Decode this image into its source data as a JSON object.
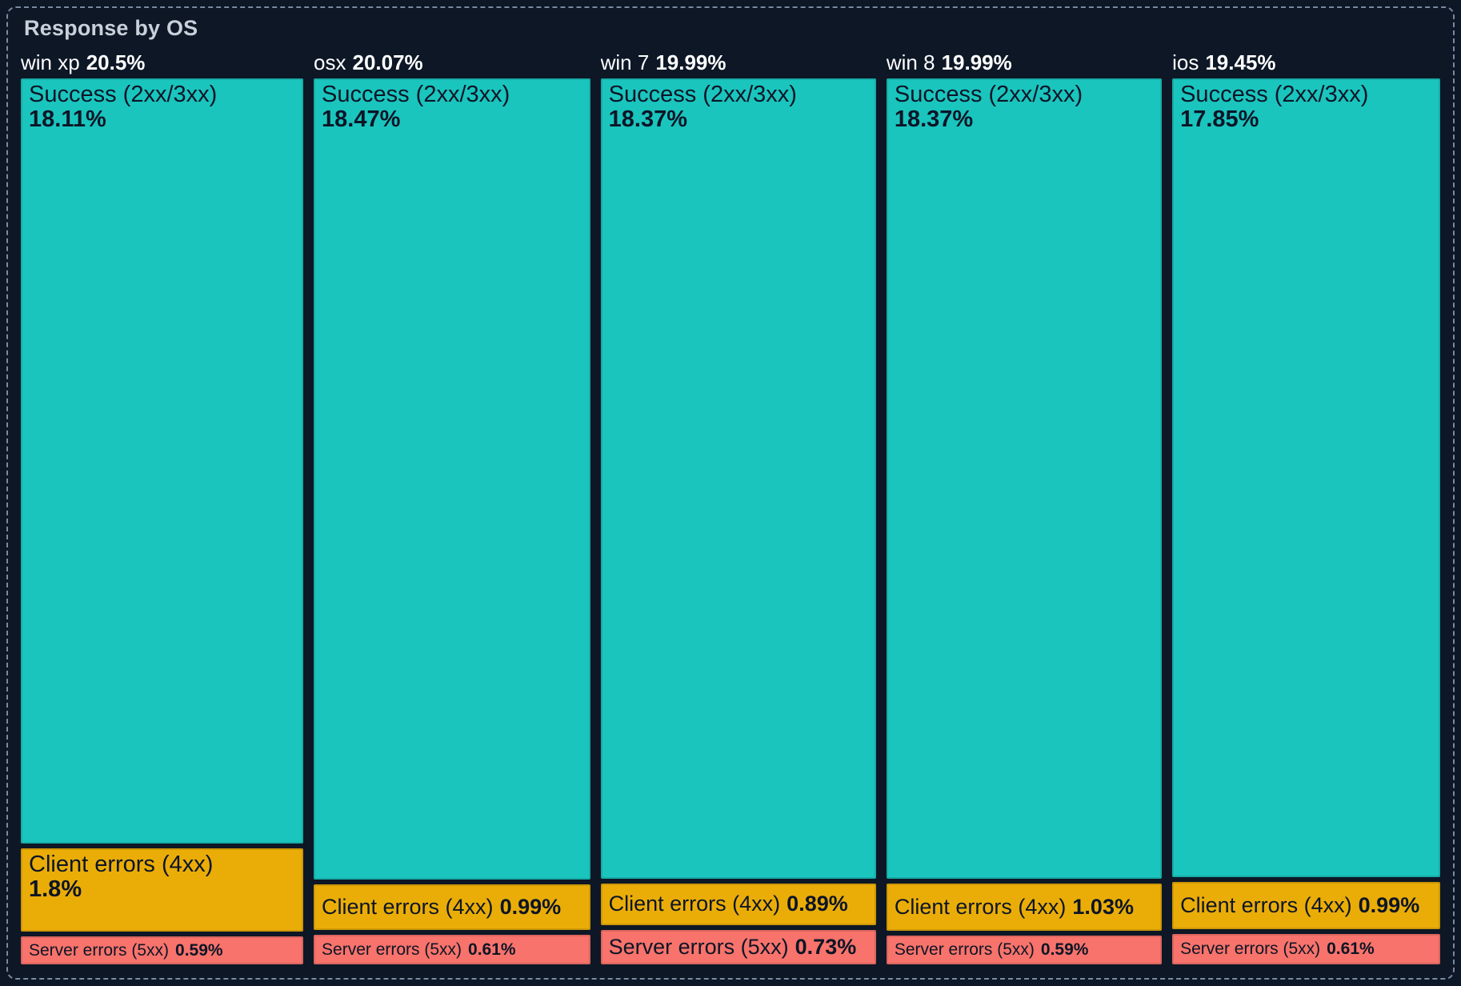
{
  "panel": {
    "title": "Response by OS"
  },
  "colors": {
    "background": "#0d1726",
    "border": "#7b89a0",
    "title_text": "#c9d0da",
    "header_text": "#ffffff",
    "segment_text": "#0d1526",
    "success": "#1ac5be",
    "client_errors": "#eaad08",
    "server_errors": "#f7736b"
  },
  "chart_data": {
    "type": "treemap",
    "title": "Response by OS",
    "legend_position": "none",
    "groups": [
      {
        "name": "win xp",
        "value": "20.5%",
        "segments": [
          {
            "label": "Success (2xx/3xx)",
            "value": "18.11%",
            "category": "success"
          },
          {
            "label": "Client errors (4xx)",
            "value": "1.8%",
            "category": "client_errors"
          },
          {
            "label": "Server errors (5xx)",
            "value": "0.59%",
            "category": "server_errors"
          }
        ]
      },
      {
        "name": "osx",
        "value": "20.07%",
        "segments": [
          {
            "label": "Success (2xx/3xx)",
            "value": "18.47%",
            "category": "success"
          },
          {
            "label": "Client errors (4xx)",
            "value": "0.99%",
            "category": "client_errors"
          },
          {
            "label": "Server errors (5xx)",
            "value": "0.61%",
            "category": "server_errors"
          }
        ]
      },
      {
        "name": "win 7",
        "value": "19.99%",
        "segments": [
          {
            "label": "Success (2xx/3xx)",
            "value": "18.37%",
            "category": "success"
          },
          {
            "label": "Client errors (4xx)",
            "value": "0.89%",
            "category": "client_errors"
          },
          {
            "label": "Server errors (5xx)",
            "value": "0.73%",
            "category": "server_errors"
          }
        ]
      },
      {
        "name": "win 8",
        "value": "19.99%",
        "segments": [
          {
            "label": "Success (2xx/3xx)",
            "value": "18.37%",
            "category": "success"
          },
          {
            "label": "Client errors (4xx)",
            "value": "1.03%",
            "category": "client_errors"
          },
          {
            "label": "Server errors (5xx)",
            "value": "0.59%",
            "category": "server_errors"
          }
        ]
      },
      {
        "name": "ios",
        "value": "19.45%",
        "segments": [
          {
            "label": "Success (2xx/3xx)",
            "value": "17.85%",
            "category": "success"
          },
          {
            "label": "Client errors (4xx)",
            "value": "0.99%",
            "category": "client_errors"
          },
          {
            "label": "Server errors (5xx)",
            "value": "0.61%",
            "category": "server_errors"
          }
        ]
      }
    ]
  }
}
